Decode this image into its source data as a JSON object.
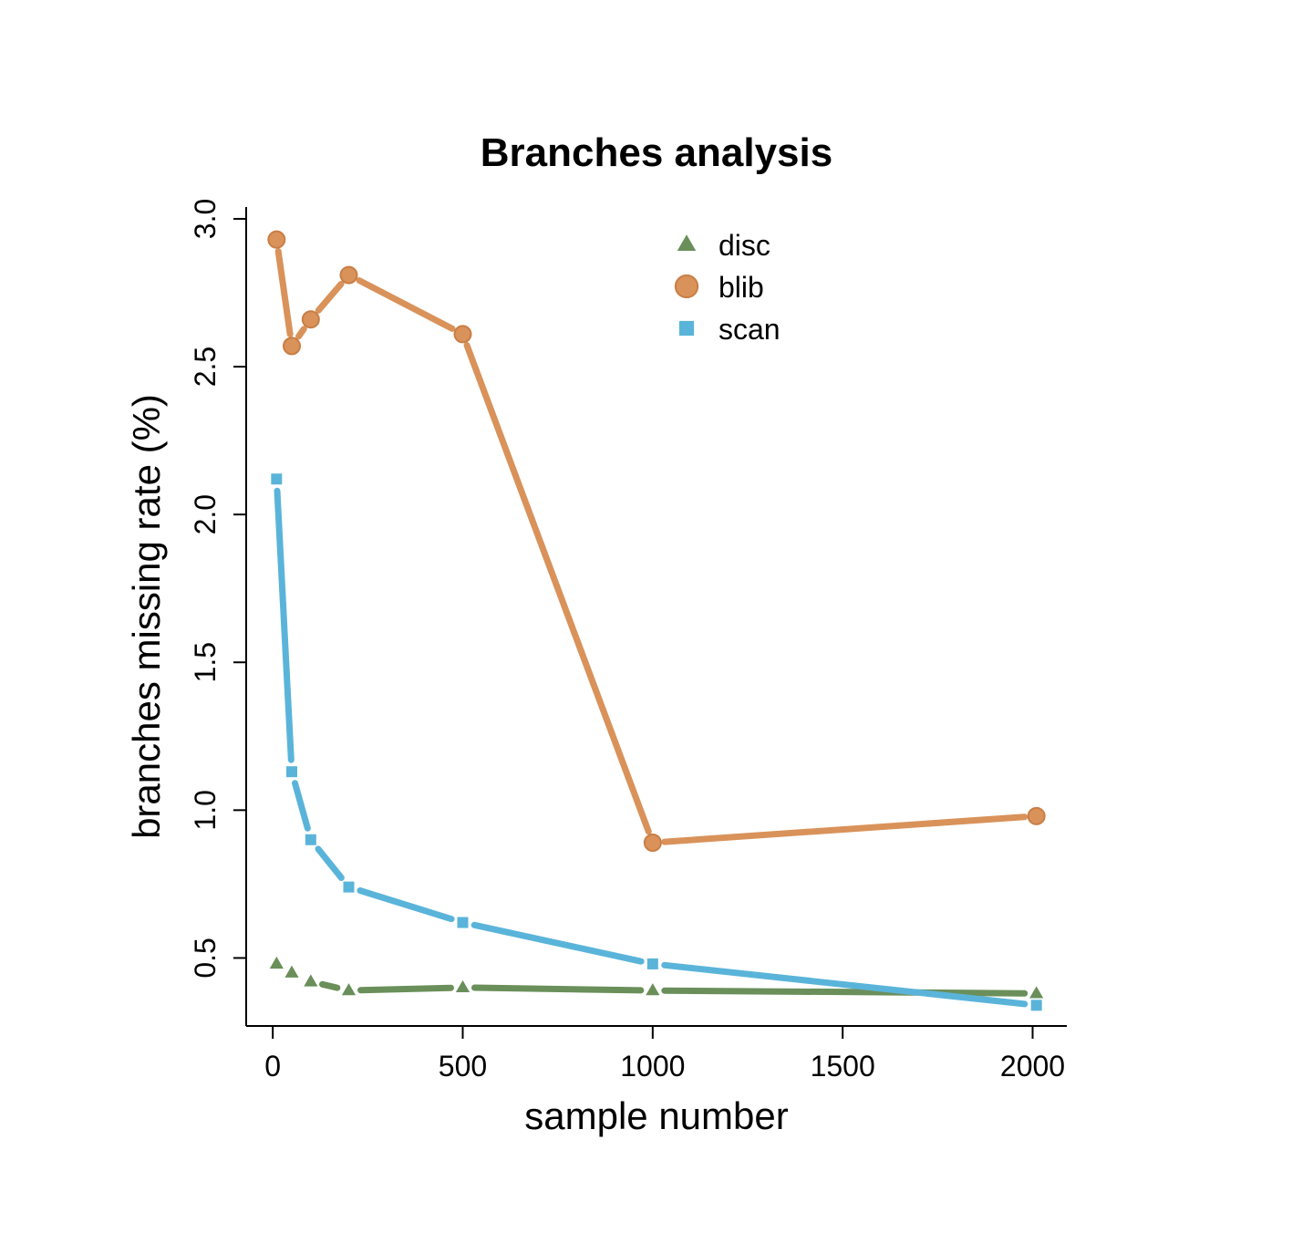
{
  "chart_data": {
    "type": "line",
    "title": "Branches analysis",
    "xlabel": "sample number",
    "ylabel": "branches missing rate (%)",
    "xlim": [
      -70,
      2090
    ],
    "ylim": [
      0.27,
      3.04
    ],
    "x_ticks": [
      0,
      500,
      1000,
      1500,
      2000
    ],
    "y_ticks": [
      0.5,
      1.0,
      1.5,
      2.0,
      2.5,
      3.0
    ],
    "x_tick_labels": [
      "0",
      "500",
      "1000",
      "1500",
      "2000"
    ],
    "y_tick_labels": [
      "0.5",
      "1.0",
      "1.5",
      "2.0",
      "2.5",
      "3.0"
    ],
    "legend_position": "top-center",
    "grid": false,
    "series": [
      {
        "name": "disc",
        "marker": "triangle",
        "color": "#6a8f5a",
        "x": [
          10,
          50,
          100,
          200,
          500,
          1000,
          2010
        ],
        "y": [
          0.48,
          0.45,
          0.42,
          0.39,
          0.4,
          0.39,
          0.38
        ]
      },
      {
        "name": "blib",
        "marker": "circle",
        "color": "#d9925a",
        "x": [
          10,
          50,
          100,
          200,
          500,
          1000,
          2010
        ],
        "y": [
          2.93,
          2.57,
          2.66,
          2.81,
          2.61,
          0.89,
          0.98
        ]
      },
      {
        "name": "scan",
        "marker": "square",
        "color": "#5ab4da",
        "x": [
          10,
          50,
          100,
          200,
          500,
          1000,
          2010
        ],
        "y": [
          2.12,
          1.13,
          0.9,
          0.74,
          0.62,
          0.48,
          0.34
        ]
      }
    ]
  }
}
